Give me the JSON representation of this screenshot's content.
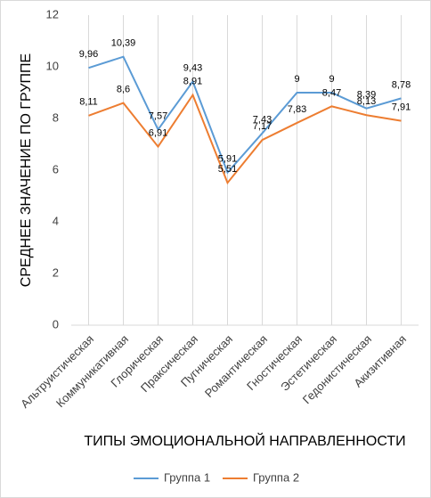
{
  "chart_data": {
    "type": "line",
    "y_label": "СРЕДНЕЕ ЗНАЧЕНИЕ ПО ГРУППЕ",
    "x_label": "ТИПЫ ЭМОЦИОНАЛЬНОЙ НАПРАВЛЕННОСТИ",
    "categories": [
      "Альтруистическая",
      "Коммуникативная",
      "Глорическая",
      "Праксическая",
      "Пугническая",
      "Романтическая",
      "Гностическая",
      "Эстетическая",
      "Гедонистическая",
      "Акизитивная"
    ],
    "series": [
      {
        "name": "Группа 1",
        "color": "#5b9bd5",
        "values": [
          9.96,
          10.39,
          7.57,
          9.43,
          5.91,
          7.43,
          9,
          9,
          8.39,
          8.78
        ],
        "value_labels": [
          "9,96",
          "10,39",
          "7,57",
          "9,43",
          "5,91",
          "7,43",
          "9",
          "9",
          "8,39",
          "8,78"
        ]
      },
      {
        "name": "Группа 2",
        "color": "#ed7d31",
        "values": [
          8.11,
          8.6,
          6.91,
          8.91,
          5.51,
          7.17,
          7.83,
          8.47,
          8.13,
          7.91
        ],
        "value_labels": [
          "8,11",
          "8,6",
          "6,91",
          "8,91",
          "5,51",
          "7,17",
          "7,83",
          "8,47",
          "8,13",
          "7,91"
        ]
      }
    ],
    "ylim": [
      0,
      12
    ],
    "yticks": [
      0,
      2,
      4,
      6,
      8,
      10,
      12
    ],
    "grid": "x",
    "legend": "bottom"
  }
}
